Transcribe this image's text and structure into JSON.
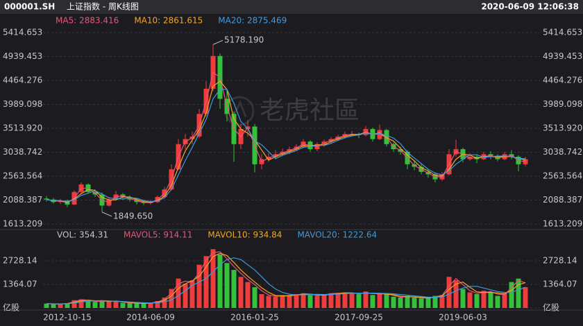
{
  "header": {
    "symbol": "000001.SH",
    "name": "上证指数 - 周K线图",
    "time": "2020-06-09 12:06:38"
  },
  "watermark": "老虎社區",
  "chart_data": [
    {
      "type": "candlestick",
      "open": [
        2120,
        2100,
        2050,
        2080,
        2000,
        2250,
        2400,
        2250,
        2200,
        1980,
        2100,
        2200,
        2150,
        2100,
        2050,
        2030,
        2050,
        2150,
        2300,
        2700,
        3200,
        3300,
        3350,
        3800,
        4300,
        4950,
        4100,
        3800,
        3200,
        3500,
        3550,
        2800,
        2900,
        2950,
        3000,
        3050,
        3100,
        3150,
        3250,
        3100,
        3200,
        3250,
        3300,
        3350,
        3400,
        3400,
        3380,
        3500,
        3300,
        3480,
        3200,
        3100,
        3050,
        2800,
        2750,
        2650,
        2600,
        2500,
        2600,
        3000,
        3100,
        2900,
        2950,
        2900,
        3000,
        2950,
        2900,
        3000,
        2950,
        2800
      ],
      "high": [
        2170,
        2130,
        2110,
        2100,
        2280,
        2440,
        2420,
        2300,
        2240,
        2150,
        2270,
        2230,
        2180,
        2120,
        2080,
        2090,
        2180,
        2350,
        2800,
        3300,
        3400,
        3450,
        3900,
        4450,
        5178.19,
        5000,
        4300,
        3850,
        3600,
        3680,
        3600,
        3000,
        3020,
        3080,
        3110,
        3150,
        3200,
        3300,
        3280,
        3240,
        3290,
        3340,
        3390,
        3450,
        3460,
        3430,
        3560,
        3530,
        3590,
        3500,
        3230,
        3150,
        3080,
        2880,
        2800,
        2700,
        2640,
        2650,
        3100,
        3288,
        3130,
        3020,
        3000,
        3050,
        3060,
        3000,
        3050,
        3080,
        2980,
        2950
      ],
      "low": [
        2060,
        2020,
        2010,
        1950,
        1990,
        2220,
        2220,
        2150,
        1849.65,
        1960,
        2080,
        2100,
        2060,
        2000,
        1990,
        2000,
        2030,
        2140,
        2280,
        2680,
        3100,
        3200,
        3320,
        3750,
        4250,
        3900,
        3650,
        2850,
        3100,
        3350,
        2640,
        2700,
        2850,
        2900,
        2960,
        3000,
        3060,
        3120,
        3050,
        3060,
        3150,
        3210,
        3260,
        3310,
        3350,
        3320,
        3350,
        3250,
        3280,
        3150,
        3050,
        2990,
        2700,
        2680,
        2600,
        2530,
        2440,
        2470,
        2580,
        2950,
        2840,
        2870,
        2820,
        2880,
        2900,
        2860,
        2880,
        2900,
        2660,
        2760
      ],
      "close": [
        2100,
        2050,
        2080,
        2000,
        2250,
        2400,
        2250,
        2200,
        1980,
        2100,
        2200,
        2150,
        2100,
        2050,
        2030,
        2050,
        2150,
        2300,
        2700,
        3200,
        3300,
        3350,
        3800,
        4300,
        4950,
        4100,
        3800,
        3200,
        3500,
        3550,
        2800,
        2900,
        2950,
        3000,
        3050,
        3100,
        3150,
        3250,
        3100,
        3200,
        3250,
        3300,
        3350,
        3400,
        3400,
        3380,
        3500,
        3300,
        3480,
        3200,
        3100,
        3050,
        2800,
        2750,
        2650,
        2600,
        2500,
        2600,
        3000,
        3100,
        2900,
        2950,
        2900,
        3000,
        2950,
        2900,
        3000,
        2950,
        2800,
        2900
      ],
      "up_color": "#f03c3c",
      "down_color": "#33c23a",
      "series": [
        {
          "label": "MA5: 2883.416",
          "color": "#e8557a",
          "values": [
            2100,
            2075,
            2065,
            2040,
            2125,
            2325,
            2325,
            2225,
            2090,
            2040,
            2150,
            2175,
            2125,
            2075,
            2040,
            2040,
            2100,
            2225,
            2500,
            2950,
            3250,
            3325,
            3575,
            4050,
            4625,
            4525,
            3950,
            3500,
            3350,
            3525,
            3175,
            2850,
            2925,
            2975,
            3025,
            3075,
            3125,
            3200,
            3175,
            3150,
            3225,
            3275,
            3325,
            3375,
            3400,
            3390,
            3440,
            3400,
            3390,
            3340,
            3150,
            3075,
            2925,
            2775,
            2700,
            2625,
            2550,
            2550,
            2800,
            3050,
            3000,
            2925,
            2925,
            2950,
            2975,
            2925,
            2950,
            2975,
            2875,
            2850
          ]
        },
        {
          "label": "MA10: 2861.615",
          "color": "#f5a623",
          "values": [
            2100,
            2075,
            2077,
            2043,
            2110,
            2217,
            2300,
            2283,
            2143,
            2093,
            2093,
            2150,
            2150,
            2100,
            2060,
            2043,
            2077,
            2167,
            2383,
            2733,
            3067,
            3283,
            3483,
            3817,
            4350,
            4450,
            4283,
            3700,
            3500,
            3417,
            3283,
            3083,
            2883,
            2950,
            3000,
            3050,
            3100,
            3167,
            3167,
            3183,
            3183,
            3250,
            3300,
            3350,
            3383,
            3393,
            3427,
            3393,
            3427,
            3327,
            3260,
            3117,
            2983,
            2867,
            2733,
            2667,
            2583,
            2567,
            2700,
            2900,
            3000,
            2983,
            2917,
            2950,
            2950,
            2950,
            2950,
            2950,
            2917,
            2883
          ]
        },
        {
          "label": "MA20: 2875.469",
          "color": "#3e9be0",
          "values": [
            2100,
            2080,
            2080,
            2060,
            2095,
            2180,
            2225,
            2275,
            2208,
            2133,
            2120,
            2108,
            2138,
            2125,
            2083,
            2058,
            2070,
            2133,
            2300,
            2588,
            2875,
            3138,
            3413,
            3688,
            4100,
            4288,
            4288,
            4013,
            3650,
            3513,
            3263,
            3188,
            3050,
            2913,
            2975,
            3025,
            3075,
            3138,
            3150,
            3175,
            3175,
            3213,
            3275,
            3325,
            3363,
            3383,
            3420,
            3395,
            3415,
            3370,
            3320,
            3208,
            3038,
            2925,
            2813,
            2700,
            2625,
            2588,
            2675,
            2800,
            2900,
            2988,
            2988,
            2938,
            2950,
            2963,
            2963,
            2950,
            2913,
            2913
          ]
        }
      ],
      "annotations": [
        {
          "value": 5178.19,
          "label": "5178.190"
        },
        {
          "value": 1849.65,
          "label": "1849.650"
        }
      ],
      "ylim": [
        1613.209,
        5414.653
      ],
      "yticks": [
        1613.209,
        2088.387,
        2563.564,
        3038.742,
        {
          "value": 3513.92,
          "label": "3513.920"
        },
        3989.098,
        4464.276,
        4939.453,
        5414.653
      ],
      "grid": true
    },
    {
      "type": "bar",
      "categories": [
        null,
        null,
        null,
        "2012-10-15",
        null,
        null,
        null,
        null,
        null,
        null,
        null,
        null,
        null,
        null,
        null,
        "2014-06-09",
        null,
        null,
        null,
        null,
        null,
        null,
        null,
        null,
        null,
        null,
        null,
        null,
        null,
        null,
        "2016-01-25",
        null,
        null,
        null,
        null,
        null,
        null,
        null,
        null,
        null,
        null,
        null,
        null,
        null,
        null,
        "2017-09-25",
        null,
        null,
        null,
        null,
        null,
        null,
        null,
        null,
        null,
        null,
        null,
        null,
        null,
        null,
        "2019-06-03",
        null,
        null,
        null,
        null,
        null,
        null,
        null,
        null,
        null
      ],
      "title": "VOL: 354.31",
      "values": [
        250,
        220,
        230,
        280,
        450,
        500,
        400,
        350,
        420,
        380,
        400,
        300,
        280,
        260,
        270,
        300,
        400,
        600,
        1100,
        1700,
        1400,
        1600,
        2500,
        3000,
        3400,
        3100,
        2600,
        2200,
        1800,
        1500,
        1200,
        800,
        700,
        650,
        750,
        700,
        800,
        850,
        750,
        700,
        800,
        850,
        850,
        900,
        850,
        800,
        950,
        750,
        850,
        800,
        650,
        600,
        700,
        600,
        550,
        600,
        700,
        750,
        1800,
        1600,
        1100,
        900,
        800,
        1000,
        900,
        700,
        850,
        1500,
        1700,
        1200
      ],
      "series": [
        {
          "label": "MAVOL5: 914.11",
          "color": "#e8557a",
          "values": [
            250,
            235,
            225,
            255,
            365,
            475,
            450,
            375,
            385,
            400,
            390,
            350,
            290,
            270,
            265,
            285,
            350,
            500,
            850,
            1400,
            1550,
            1500,
            2050,
            2750,
            3200,
            3250,
            2850,
            2400,
            2000,
            1650,
            1350,
            1000,
            750,
            675,
            700,
            725,
            750,
            825,
            800,
            725,
            750,
            825,
            850,
            875,
            875,
            825,
            875,
            850,
            800,
            825,
            725,
            625,
            650,
            650,
            575,
            575,
            650,
            725,
            1275,
            1700,
            1350,
            1000,
            850,
            900,
            950,
            800,
            775,
            1175,
            1600,
            1450
          ]
        },
        {
          "label": "MAVOL10: 934.84",
          "color": "#f5a623",
          "values": [
            250,
            235,
            233,
            243,
            320,
            410,
            450,
            417,
            423,
            383,
            400,
            360,
            327,
            280,
            270,
            277,
            323,
            433,
            700,
            1133,
            1400,
            1567,
            1833,
            2367,
            2967,
            3167,
            3033,
            2633,
            2200,
            1833,
            1500,
            1167,
            900,
            717,
            700,
            700,
            750,
            783,
            800,
            767,
            750,
            783,
            833,
            867,
            867,
            850,
            867,
            833,
            850,
            800,
            767,
            683,
            650,
            633,
            617,
            583,
            617,
            683,
            1083,
            1383,
            1500,
            1200,
            933,
            900,
            900,
            867,
            817,
            1017,
            1350,
            1467
          ]
        },
        {
          "label": "MAVOL20: 1222.64",
          "color": "#3e9be0",
          "values": [
            250,
            240,
            235,
            245,
            290,
            345,
            395,
            415,
            425,
            410,
            395,
            375,
            350,
            320,
            300,
            290,
            300,
            350,
            470,
            720,
            1000,
            1300,
            1500,
            1700,
            2100,
            2500,
            2800,
            2900,
            2800,
            2500,
            2200,
            1800,
            1400,
            1100,
            900,
            800,
            750,
            760,
            780,
            790,
            780,
            790,
            800,
            830,
            850,
            860,
            860,
            860,
            850,
            840,
            820,
            780,
            740,
            700,
            660,
            620,
            620,
            640,
            800,
            1000,
            1150,
            1250,
            1250,
            1150,
            1050,
            950,
            900,
            900,
            1050,
            1200
          ]
        }
      ],
      "ylim": [
        0,
        3771.25
      ],
      "yticks": [
        {
          "value": 0,
          "label": "亿股"
        },
        1364.07,
        2728.14
      ],
      "grid": true
    }
  ]
}
